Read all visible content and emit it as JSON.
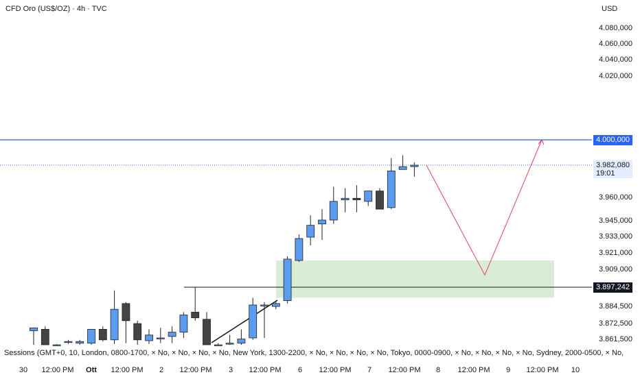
{
  "header": {
    "title": "CFD Oro (US$/OZ) · 4h · TVC",
    "currency": "USD"
  },
  "footer": {
    "sessions": "Sessions (GMT+0, 10, London, 0800-1700, × No, × No, × No, × No, New York, 1300-2200, × No, × No, × No, × No, Tokyo, 0000-0900, × No, × No, × No, × No, Sydney, 2000-0500, × No,"
  },
  "price_tags": {
    "level_4000": "4.000,000",
    "current_price": "3.982,080",
    "countdown": "19:01",
    "level_3897": "3.897,242"
  },
  "colors": {
    "up": "#5b9cf0",
    "down": "#444444",
    "blue_line": "#2962ff",
    "zone": "#d9ecd6",
    "path": "#e0405a"
  },
  "chart_data": {
    "type": "candlestick",
    "title": "CFD Oro (US$/OZ) · 4h · TVC",
    "y_axis_labels": [
      "4.080,000",
      "4.060,000",
      "4.040,000",
      "4.020,000",
      "4.000,000",
      "3.982,080",
      "3.960,000",
      "3.945,000",
      "3.933,000",
      "3.921,000",
      "3.909,000",
      "3.897,242",
      "3.884,500",
      "3.872,500",
      "3.861,500"
    ],
    "x_axis_labels": [
      "30",
      "12:00 PM",
      "Ott",
      "12:00 PM",
      "2",
      "12:00 PM",
      "3",
      "12:00 PM",
      "6",
      "12:00 PM",
      "7",
      "12:00 PM",
      "8",
      "12:00 PM",
      "9",
      "12:00 PM",
      "10"
    ],
    "candles": [
      {
        "o": 3867,
        "h": 3869,
        "l": 3850,
        "c": 3869
      },
      {
        "o": 3868,
        "h": 3870,
        "l": 3850,
        "c": 3850
      },
      {
        "o": 3850,
        "h": 3855,
        "l": 3845,
        "c": 3852
      },
      {
        "o": 3858,
        "h": 3860,
        "l": 3855,
        "c": 3858
      },
      {
        "o": 3856,
        "h": 3860,
        "l": 3848,
        "c": 3858
      },
      {
        "o": 3856,
        "h": 3868,
        "l": 3850,
        "c": 3868
      },
      {
        "o": 3868,
        "h": 3870,
        "l": 3858,
        "c": 3860
      },
      {
        "o": 3860,
        "h": 3895,
        "l": 3855,
        "c": 3882
      },
      {
        "o": 3886,
        "h": 3887,
        "l": 3856,
        "c": 3874
      },
      {
        "o": 3872,
        "h": 3874,
        "l": 3850,
        "c": 3860
      },
      {
        "o": 3859,
        "h": 3868,
        "l": 3855,
        "c": 3864
      },
      {
        "o": 3862,
        "h": 3869,
        "l": 3856,
        "c": 3862
      },
      {
        "o": 3863,
        "h": 3870,
        "l": 3856,
        "c": 3866
      },
      {
        "o": 3866,
        "h": 3880,
        "l": 3862,
        "c": 3878
      },
      {
        "o": 3880,
        "h": 3897,
        "l": 3874,
        "c": 3876
      },
      {
        "o": 3875,
        "h": 3880,
        "l": 3845,
        "c": 3845
      },
      {
        "o": 3850,
        "h": 3856,
        "l": 3840,
        "c": 3850
      },
      {
        "o": 3855,
        "h": 3864,
        "l": 3850,
        "c": 3856
      },
      {
        "o": 3856,
        "h": 3868,
        "l": 3850,
        "c": 3861
      },
      {
        "o": 3862,
        "h": 3890,
        "l": 3860,
        "c": 3885
      },
      {
        "o": 3885,
        "h": 3887,
        "l": 3862,
        "c": 3885
      },
      {
        "o": 3884,
        "h": 3888,
        "l": 3882,
        "c": 3886
      },
      {
        "o": 3888,
        "h": 3918,
        "l": 3886,
        "c": 3916
      },
      {
        "o": 3915,
        "h": 3934,
        "l": 3914,
        "c": 3931
      },
      {
        "o": 3932,
        "h": 3948,
        "l": 3926,
        "c": 3941
      },
      {
        "o": 3942,
        "h": 3952,
        "l": 3930,
        "c": 3945
      },
      {
        "o": 3945,
        "h": 3967,
        "l": 3942,
        "c": 3957
      },
      {
        "o": 3958,
        "h": 3966,
        "l": 3950,
        "c": 3959
      },
      {
        "o": 3959,
        "h": 3968,
        "l": 3950,
        "c": 3958
      },
      {
        "o": 3957,
        "h": 3963,
        "l": 3954,
        "c": 3964
      },
      {
        "o": 3964,
        "h": 3966,
        "l": 3952,
        "c": 3952
      },
      {
        "o": 3953,
        "h": 3987,
        "l": 3952,
        "c": 3978
      },
      {
        "o": 3979,
        "h": 3989,
        "l": 3979,
        "c": 3981
      },
      {
        "o": 3981,
        "h": 3984,
        "l": 3974,
        "c": 3982
      }
    ],
    "annotations": {
      "horizontal_line": 4000,
      "current_price": 3982.08,
      "level_line": 3897.242,
      "zone": [
        3890,
        3915
      ],
      "projected_path": [
        3982,
        3905,
        4000
      ]
    }
  }
}
